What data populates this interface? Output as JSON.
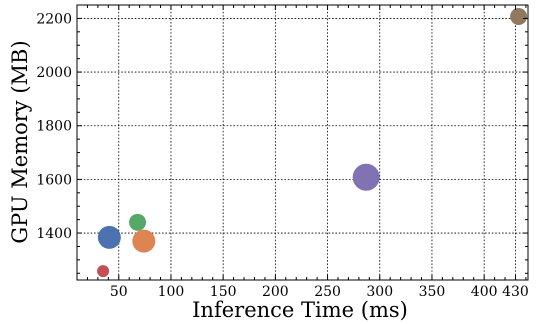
{
  "chart_data": {
    "type": "scatter",
    "title": "",
    "xlabel": "Inference Time (ms)",
    "ylabel": "GPU Memory (MB)",
    "xlim": [
      10,
      442
    ],
    "ylim": [
      1225,
      2250
    ],
    "xticks": [
      50,
      100,
      150,
      200,
      250,
      300,
      350,
      400,
      430
    ],
    "xtick_labels": [
      "50",
      "100",
      "150",
      "200",
      "250",
      "300",
      "350",
      "400",
      "430"
    ],
    "yticks": [
      1400,
      1600,
      1800,
      2000,
      2200
    ],
    "ytick_labels": [
      "1400",
      "1600",
      "1800",
      "2000",
      "2200"
    ],
    "grid": true,
    "points": [
      {
        "x": 35,
        "y": 1258,
        "size": "small",
        "color": "#c44e52"
      },
      {
        "x": 41,
        "y": 1384,
        "size": "large",
        "color": "#4c72b0"
      },
      {
        "x": 68,
        "y": 1440,
        "size": "medium",
        "color": "#55a868"
      },
      {
        "x": 74,
        "y": 1370,
        "size": "large",
        "color": "#dd8452"
      },
      {
        "x": 287,
        "y": 1608,
        "size": "xlarge",
        "color": "#8172b3"
      },
      {
        "x": 433,
        "y": 2207,
        "size": "medium",
        "color": "#937860"
      }
    ]
  }
}
